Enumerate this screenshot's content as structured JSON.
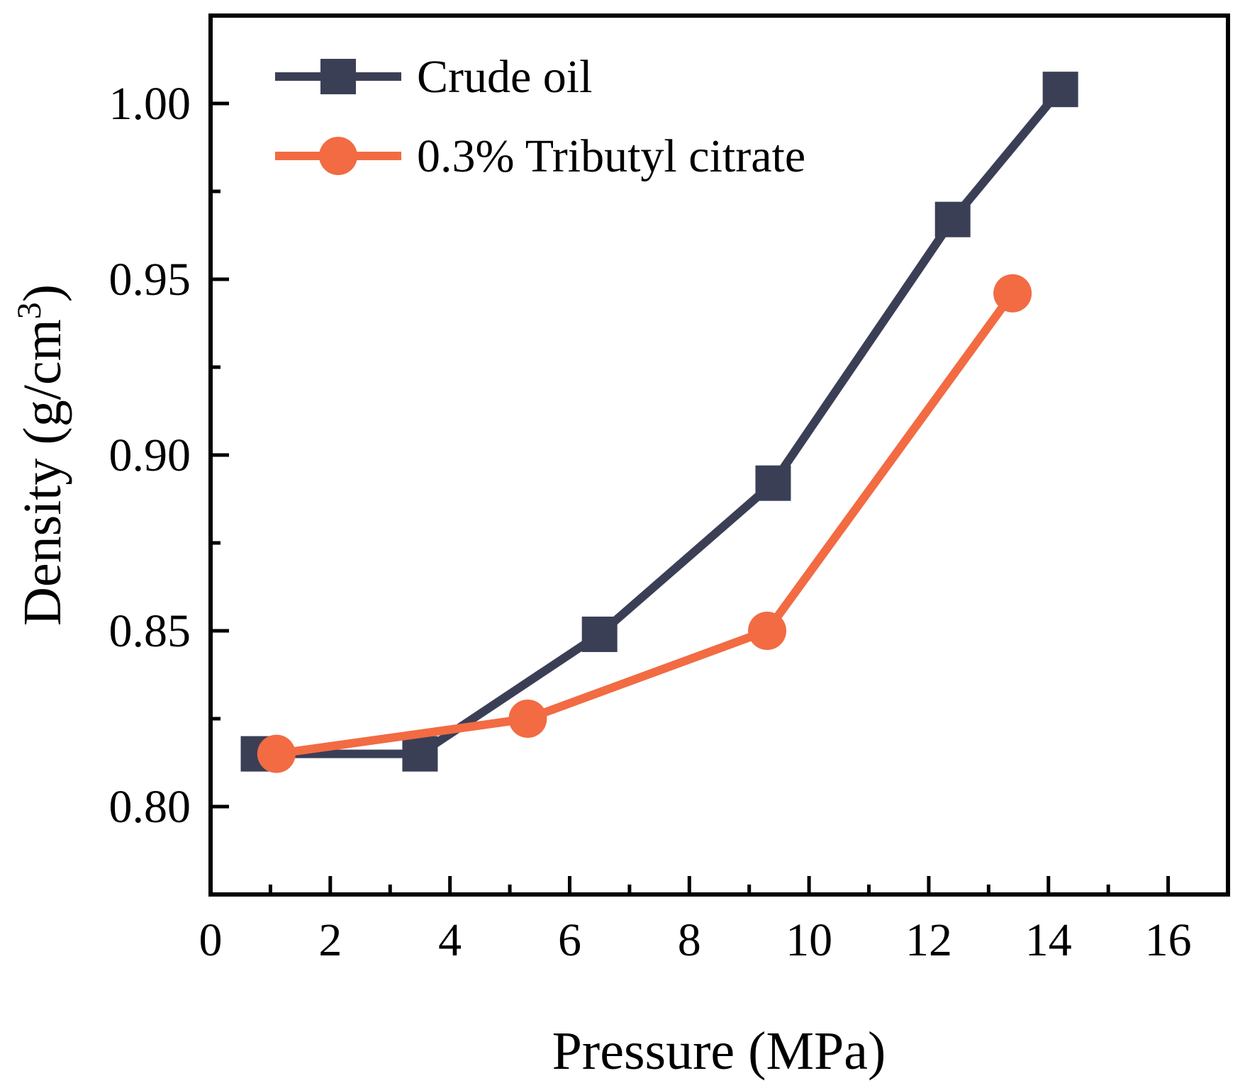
{
  "chart_data": {
    "type": "line",
    "xlabel": "Pressure (MPa)",
    "ylabel_main": "Density (g/cm",
    "ylabel_sup": "3",
    "ylabel_close": ")",
    "xlim": [
      0,
      17
    ],
    "ylim": [
      0.775,
      1.025
    ],
    "x_ticks": [
      0,
      2,
      4,
      6,
      8,
      10,
      12,
      14,
      16
    ],
    "x_tick_labels": [
      "0",
      "2",
      "4",
      "6",
      "8",
      "10",
      "12",
      "14",
      "16"
    ],
    "x_minor_ticks": [
      1,
      3,
      5,
      7,
      9,
      11,
      13,
      15
    ],
    "y_ticks": [
      0.8,
      0.85,
      0.9,
      0.95,
      1.0
    ],
    "y_tick_labels": [
      "0.80",
      "0.85",
      "0.90",
      "0.95",
      "1.00"
    ],
    "y_minor_ticks": [
      0.825,
      0.875,
      0.925,
      0.975
    ],
    "grid": false,
    "legend_position": "top-left",
    "series": [
      {
        "name": "Crude oil",
        "marker": "square",
        "color": "#3b3f56",
        "x": [
          0.8,
          3.5,
          6.5,
          9.4,
          12.4,
          14.2
        ],
        "y": [
          0.815,
          0.815,
          0.849,
          0.892,
          0.967,
          1.004
        ]
      },
      {
        "name": "0.3% Tributyl citrate",
        "marker": "circle",
        "color": "#f26b43",
        "x": [
          1.1,
          5.3,
          9.3,
          13.4
        ],
        "y": [
          0.815,
          0.825,
          0.85,
          0.946
        ]
      }
    ]
  }
}
